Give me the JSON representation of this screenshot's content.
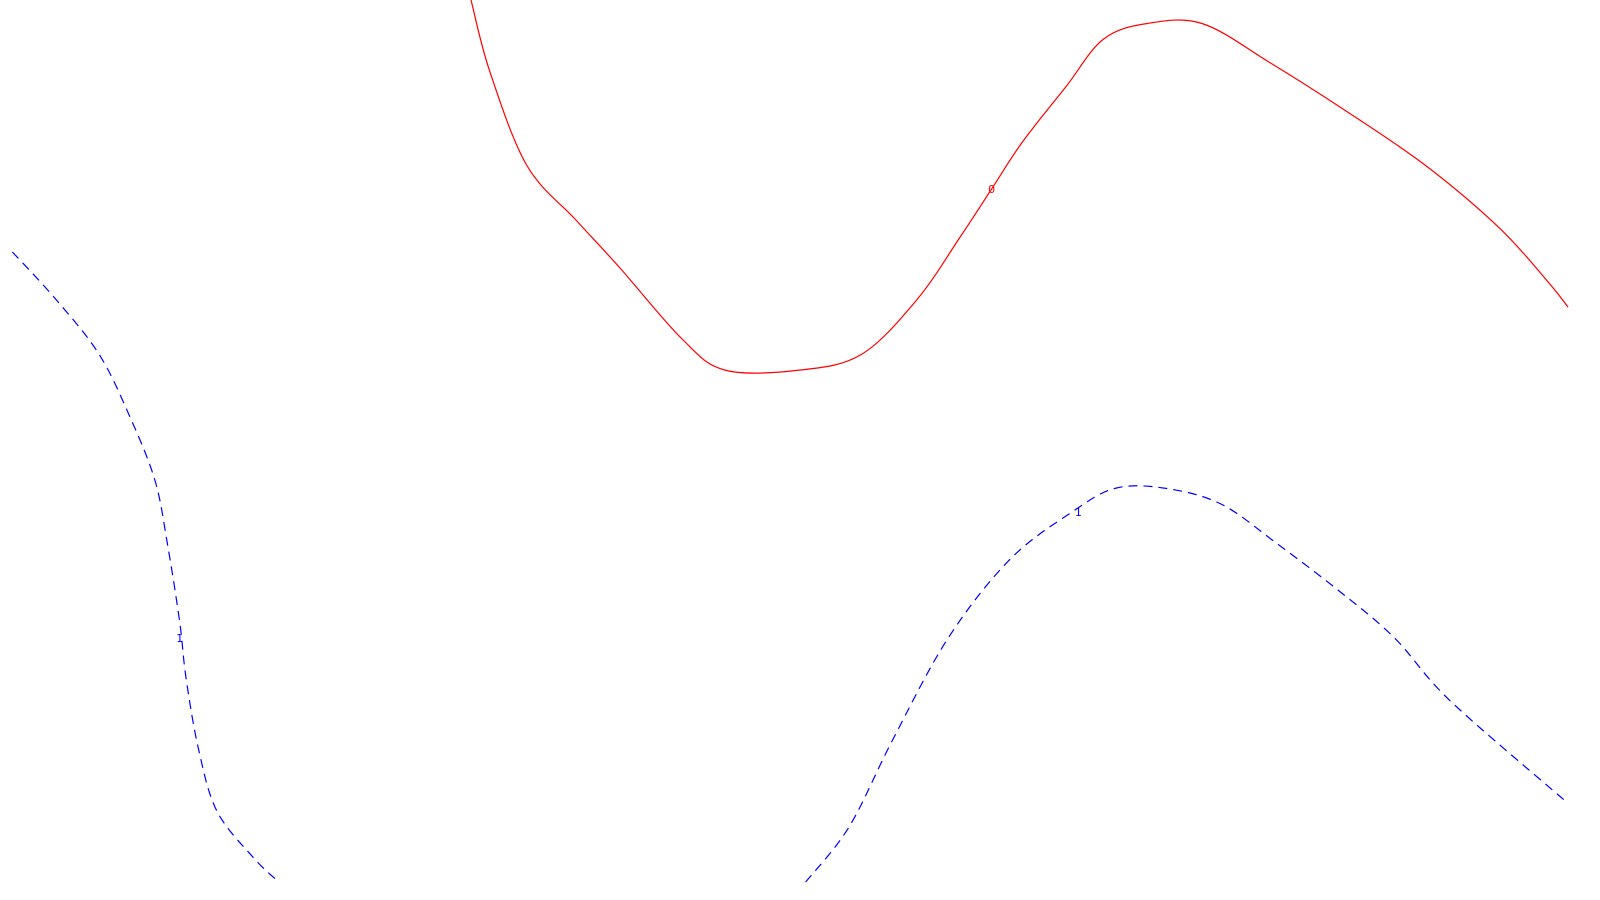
{
  "chart_data": {
    "type": "line",
    "title": "",
    "xlabel": "",
    "ylabel": "",
    "grid": false,
    "axes_visible": false,
    "series": [
      {
        "style": "solid",
        "color": "#ff0000",
        "label": "0",
        "points": [
          [
            -0.56,
            1.0
          ],
          [
            -0.53,
            0.91
          ],
          [
            -0.47,
            0.79
          ],
          [
            -0.39,
            0.72
          ],
          [
            -0.32,
            0.66
          ],
          [
            -0.22,
            0.57
          ],
          [
            -0.15,
            0.53
          ],
          [
            -0.03,
            0.53
          ],
          [
            0.07,
            0.55
          ],
          [
            0.16,
            0.62
          ],
          [
            0.23,
            0.7
          ],
          [
            0.28,
            0.76
          ],
          [
            0.33,
            0.82
          ],
          [
            0.4,
            0.89
          ],
          [
            0.46,
            0.95
          ],
          [
            0.53,
            0.97
          ],
          [
            0.62,
            0.97
          ],
          [
            0.73,
            0.92
          ],
          [
            0.85,
            0.86
          ],
          [
            0.98,
            0.79
          ],
          [
            1.1,
            0.71
          ],
          [
            1.18,
            0.64
          ],
          [
            1.21,
            0.61
          ]
        ],
        "label_at": [
          0.28,
          0.76
        ]
      },
      {
        "style": "dashed",
        "color": "#0000ff",
        "label": "1",
        "points": [
          [
            -1.3,
            0.68
          ],
          [
            -1.23,
            0.62
          ],
          [
            -1.16,
            0.55
          ],
          [
            -1.11,
            0.47
          ],
          [
            -1.07,
            0.39
          ],
          [
            -1.05,
            0.31
          ],
          [
            -1.03,
            0.21
          ],
          [
            -1.02,
            0.14
          ],
          [
            -1.0,
            0.05
          ],
          [
            -0.97,
            -0.03
          ],
          [
            -0.91,
            -0.09
          ],
          [
            -0.87,
            -0.12
          ]
        ],
        "label_at": [
          -1.03,
          0.19
        ]
      },
      {
        "style": "dashed",
        "color": "#0000ff",
        "label": "1",
        "points": [
          [
            -0.02,
            -0.12
          ],
          [
            0.05,
            -0.05
          ],
          [
            0.12,
            0.06
          ],
          [
            0.21,
            0.19
          ],
          [
            0.31,
            0.29
          ],
          [
            0.41,
            0.35
          ],
          [
            0.48,
            0.38
          ],
          [
            0.56,
            0.38
          ],
          [
            0.65,
            0.36
          ],
          [
            0.74,
            0.31
          ],
          [
            0.84,
            0.25
          ],
          [
            0.93,
            0.19
          ],
          [
            1.02,
            0.11
          ],
          [
            1.21,
            -0.02
          ]
        ],
        "label_at": [
          0.42,
          0.35
        ]
      }
    ],
    "xlim": [
      -1.32,
      1.21
    ],
    "ylim": [
      -0.12,
      1.0
    ]
  },
  "colors": {
    "background": "#ffffff",
    "level_0": "#ff0000",
    "level_1": "#0000ff"
  }
}
